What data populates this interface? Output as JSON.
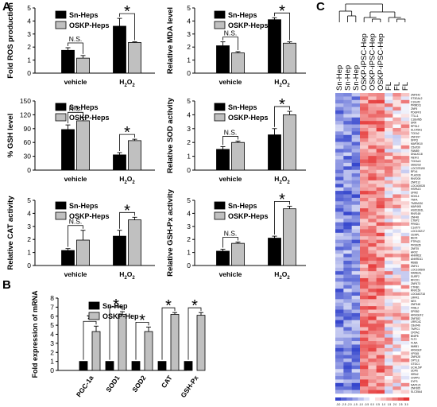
{
  "panels": {
    "a": "A",
    "b": "B",
    "c": "C"
  },
  "colors": {
    "black_bar": "#000000",
    "grey_bar": "#c0c0c0"
  },
  "chart_data": [
    {
      "id": "ros",
      "type": "bar",
      "ylabel": "Fold ROS production",
      "categories": [
        "vehicle",
        "H2O2"
      ],
      "ylim": [
        0,
        5
      ],
      "yticks": [
        0,
        1,
        2,
        3,
        4,
        5
      ],
      "series": [
        {
          "name": "Sn-Heps",
          "values": [
            1.75,
            3.6
          ],
          "errors": [
            0.2,
            0.6
          ]
        },
        {
          "name": "OSKP-Heps",
          "values": [
            1.15,
            2.35
          ],
          "errors": [
            0.2,
            0.05
          ]
        }
      ],
      "annotations": [
        {
          "group": 0,
          "label": "N.S."
        },
        {
          "group": 1,
          "label": "*"
        }
      ]
    },
    {
      "id": "mda",
      "type": "bar",
      "ylabel": "Relative MDA level",
      "categories": [
        "vehicle",
        "H2O2"
      ],
      "ylim": [
        0,
        5
      ],
      "yticks": [
        0,
        1,
        2,
        3,
        4,
        5
      ],
      "series": [
        {
          "name": "Sn-Heps",
          "values": [
            2.1,
            4.1
          ],
          "errors": [
            0.3,
            0.15
          ]
        },
        {
          "name": "OSKP-Heps",
          "values": [
            1.55,
            2.3
          ],
          "errors": [
            0.1,
            0.1
          ]
        }
      ],
      "annotations": [
        {
          "group": 0,
          "label": "N.S."
        },
        {
          "group": 1,
          "label": "*"
        }
      ]
    },
    {
      "id": "gsh",
      "type": "bar",
      "ylabel": "% GSH level",
      "categories": [
        "vehicle",
        "H2O2"
      ],
      "ylim": [
        0,
        150
      ],
      "yticks": [
        0,
        30,
        60,
        90,
        120,
        150
      ],
      "series": [
        {
          "name": "Sn-Heps",
          "values": [
            88,
            33
          ],
          "errors": [
            10,
            5
          ]
        },
        {
          "name": "OSKP-Heps",
          "values": [
            107,
            64
          ],
          "errors": [
            8,
            3
          ]
        }
      ],
      "annotations": [
        {
          "group": 0,
          "label": "N.S."
        },
        {
          "group": 1,
          "label": "*"
        }
      ]
    },
    {
      "id": "sod",
      "type": "bar",
      "ylabel": "Relative SOD activity",
      "categories": [
        "vehicle",
        "H2O2"
      ],
      "ylim": [
        0,
        5
      ],
      "yticks": [
        0,
        1,
        2,
        3,
        4,
        5
      ],
      "series": [
        {
          "name": "Sn-Heps",
          "values": [
            1.5,
            2.55
          ],
          "errors": [
            0.2,
            0.45
          ]
        },
        {
          "name": "OSKP-Heps",
          "values": [
            2.0,
            4.0
          ],
          "errors": [
            0.1,
            0.25
          ]
        }
      ],
      "annotations": [
        {
          "group": 0,
          "label": "N.S."
        },
        {
          "group": 1,
          "label": "*"
        }
      ]
    },
    {
      "id": "cat",
      "type": "bar",
      "ylabel": "Relative CAT activity",
      "categories": [
        "vehicle",
        "H2O2"
      ],
      "ylim": [
        0,
        5
      ],
      "yticks": [
        0,
        1,
        2,
        3,
        4,
        5
      ],
      "series": [
        {
          "name": "Sn-Heps",
          "values": [
            1.15,
            2.25
          ],
          "errors": [
            0.15,
            0.45
          ]
        },
        {
          "name": "OSKP-Heps",
          "values": [
            1.95,
            3.5
          ],
          "errors": [
            0.75,
            0.2
          ]
        }
      ],
      "annotations": [
        {
          "group": 0,
          "label": "N.S."
        },
        {
          "group": 1,
          "label": "*"
        }
      ]
    },
    {
      "id": "gshpx",
      "type": "bar",
      "ylabel": "Relative GSH-Px activity",
      "categories": [
        "vehicle",
        "H2O2"
      ],
      "ylim": [
        0,
        5
      ],
      "yticks": [
        0,
        1,
        2,
        3,
        4,
        5
      ],
      "series": [
        {
          "name": "Sn-Heps",
          "values": [
            1.1,
            2.1
          ],
          "errors": [
            0.15,
            0.15
          ]
        },
        {
          "name": "OSKP-Heps",
          "values": [
            1.7,
            4.35
          ],
          "errors": [
            0.1,
            0.2
          ]
        }
      ],
      "annotations": [
        {
          "group": 0,
          "label": "N.S."
        },
        {
          "group": 1,
          "label": "*"
        }
      ]
    },
    {
      "id": "mrna",
      "type": "bar",
      "ylabel": "Fold expression of mRNA",
      "categories": [
        "PGC-1a",
        "SOD1",
        "SOD2",
        "CAT",
        "GSH-Px"
      ],
      "ylim": [
        0,
        8
      ],
      "yticks": [
        0,
        1,
        2,
        3,
        4,
        5,
        6,
        7,
        8
      ],
      "series": [
        {
          "name": "Sn-Hep",
          "values": [
            1,
            1,
            1,
            1,
            1
          ],
          "errors": [
            0,
            0,
            0,
            0,
            0
          ]
        },
        {
          "name": "OSKP-Hep",
          "values": [
            4.3,
            6.2,
            4.3,
            6.2,
            6.1
          ],
          "errors": [
            0.6,
            0.3,
            0.5,
            0.2,
            0.3
          ]
        }
      ],
      "annotations": [
        {
          "group": 0,
          "label": "*"
        },
        {
          "group": 1,
          "label": "*"
        },
        {
          "group": 2,
          "label": "*"
        },
        {
          "group": 3,
          "label": "*"
        },
        {
          "group": 4,
          "label": "*"
        }
      ]
    },
    {
      "id": "heatmap",
      "type": "heatmap",
      "columns": [
        "Sn-Hep",
        "Sn-Hep",
        "Sn-Hep",
        "OSKP-iPSC-Hep",
        "OSKP-iPSC-Hep",
        "OSKP-iPSC-Hep",
        "FL",
        "FL",
        "FL"
      ],
      "genes": [
        "ZNF542",
        "ST3GAL2",
        "C10orf2",
        "PRMD11",
        "ZNF6",
        "PDGFF3",
        "TTLL1",
        "C18orf85",
        "SRR",
        "RPS12",
        "SLC45A1",
        "TCEA2",
        "ZNF397",
        "SFPQ",
        "MAP3K10",
        "C5orf30",
        "FAM89",
        "DNAJC18",
        "FBXF2",
        "TCEAL5",
        "UBE2G2",
        "LOC375190",
        "RFX4",
        "PLA2G6",
        "RNF209",
        "ZNF512",
        "LOC400028",
        "HSPA13",
        "UFM2",
        "SDK14",
        "TNFA",
        "TMEM130",
        "MAP4K5",
        "HSD11B1L",
        "RNF169",
        "ZNF48",
        "CTBP2",
        "PRKD1",
        "C1orf70",
        "LOC100217",
        "CENPL",
        "BEX4",
        "PTPN21",
        "PRSS35",
        "ZNF25",
        "ARX2",
        "ANKRD2",
        "ANKRD11",
        "RBBS",
        "ZNF41",
        "LOC100509",
        "MANEAL",
        "SURF2",
        "RFOX1",
        "ZNF673",
        "CTRB1",
        "RNF150",
        "LOC643718",
        "LRRK1",
        "NEK",
        "ZNF348",
        "FKBL2",
        "SPSB2",
        "ARHGEF2",
        "ZNF382",
        "LRRC4C",
        "C8orf46",
        "TMPC1",
        "CRTAC",
        "BNIP5",
        "FLT2",
        "FLNA",
        "NMIB1",
        "ARHGEF",
        "VPS45",
        "ZNF628",
        "OPTLE",
        "GTDC1",
        "UCHL5IP",
        "UDP6",
        "ISRA2",
        "CNPP3",
        "SYP3",
        "NAP1L5",
        "ZNF365",
        "SLC35A4"
      ],
      "colorbar": [
        "-3.0",
        "-2.5",
        "-2.0",
        "-1.5",
        "-1.0",
        "-0.5",
        "0.0",
        "0.5",
        "1.0",
        "1.5",
        "2.0",
        "2.5",
        "3.0"
      ],
      "colormap": {
        "low": "#3344cc",
        "mid": "#ffffff",
        "high": "#e53434"
      }
    }
  ]
}
